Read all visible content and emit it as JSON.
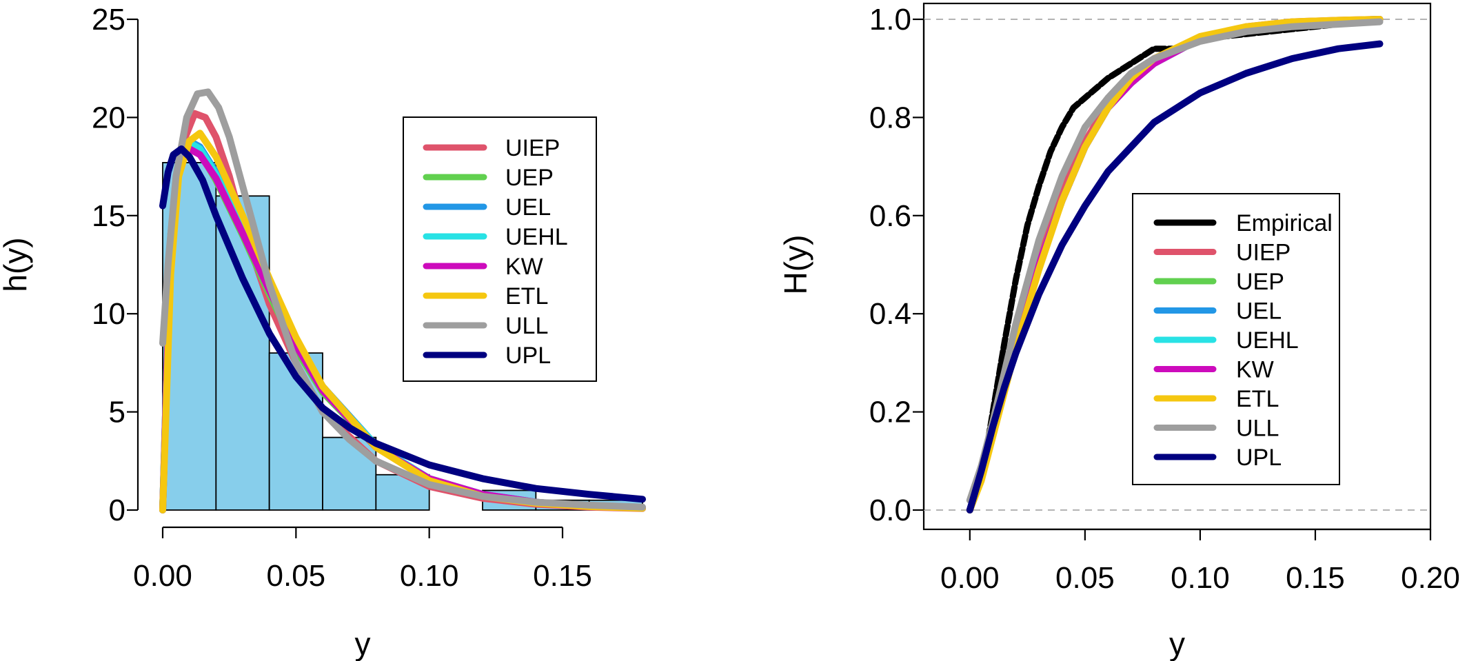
{
  "chart_data": [
    {
      "type": "histogram",
      "xlabel": "y",
      "ylabel": "h(y)",
      "xlim": [
        0,
        0.18
      ],
      "ylim": [
        0,
        25
      ],
      "x_ticks": [
        "0.00",
        "0.05",
        "0.10",
        "0.15"
      ],
      "x_tick_values": [
        0,
        0.05,
        0.1,
        0.15
      ],
      "y_ticks": [
        "0",
        "5",
        "10",
        "15",
        "20",
        "25"
      ],
      "y_tick_values": [
        0,
        5,
        10,
        15,
        20,
        25
      ],
      "histogram": {
        "bin_edges": [
          0,
          0.02,
          0.04,
          0.06,
          0.08,
          0.1,
          0.12,
          0.14,
          0.16,
          0.18
        ],
        "heights": [
          17.7,
          16.0,
          8.0,
          3.7,
          1.8,
          0.0,
          1.0,
          0.5,
          0.5
        ],
        "fill": "#87CEEB"
      },
      "legend_position": "top-right",
      "series": [
        {
          "name": "UIEP",
          "color": "#DF536B",
          "x": [
            0,
            0.003,
            0.007,
            0.012,
            0.016,
            0.02,
            0.025,
            0.03,
            0.04,
            0.05,
            0.06,
            0.08,
            0.1,
            0.12,
            0.14,
            0.16,
            0.18
          ],
          "y": [
            0,
            13,
            18.5,
            20.2,
            20.0,
            19.0,
            17.0,
            14.5,
            10.5,
            7.5,
            5.0,
            2.5,
            1.2,
            0.6,
            0.3,
            0.15,
            0.08
          ]
        },
        {
          "name": "UEP",
          "color": "#61D04F",
          "x": [
            0,
            0.003,
            0.006,
            0.01,
            0.014,
            0.02,
            0.03,
            0.04,
            0.05,
            0.06,
            0.08,
            0.1,
            0.12,
            0.14,
            0.16,
            0.18
          ],
          "y": [
            0,
            14,
            17.5,
            18.5,
            18.2,
            16.8,
            14.0,
            11.0,
            8.2,
            6.0,
            3.2,
            1.6,
            0.8,
            0.4,
            0.2,
            0.1
          ]
        },
        {
          "name": "UEL",
          "color": "#2297E6",
          "x": [
            0,
            0.003,
            0.006,
            0.01,
            0.014,
            0.02,
            0.03,
            0.04,
            0.05,
            0.06,
            0.08,
            0.1,
            0.12,
            0.14,
            0.16,
            0.18
          ],
          "y": [
            0,
            14,
            17.8,
            18.8,
            18.5,
            17.2,
            14.4,
            11.5,
            8.6,
            6.3,
            3.3,
            1.6,
            0.8,
            0.4,
            0.2,
            0.1
          ]
        },
        {
          "name": "UEHL",
          "color": "#28E2E5",
          "x": [
            0,
            0.003,
            0.006,
            0.01,
            0.014,
            0.02,
            0.03,
            0.04,
            0.05,
            0.06,
            0.08,
            0.1,
            0.12,
            0.14,
            0.16,
            0.18
          ],
          "y": [
            0,
            14,
            17.7,
            18.7,
            18.4,
            17.1,
            14.3,
            11.4,
            8.5,
            6.2,
            3.3,
            1.6,
            0.8,
            0.4,
            0.2,
            0.1
          ]
        },
        {
          "name": "KW",
          "color": "#CD0BBC",
          "x": [
            0,
            0.003,
            0.006,
            0.01,
            0.014,
            0.02,
            0.03,
            0.04,
            0.05,
            0.06,
            0.08,
            0.1,
            0.12,
            0.14,
            0.16,
            0.18
          ],
          "y": [
            0,
            13.5,
            17.4,
            18.4,
            18.1,
            16.9,
            14.1,
            11.2,
            8.4,
            6.1,
            3.2,
            1.6,
            0.8,
            0.4,
            0.2,
            0.1
          ]
        },
        {
          "name": "ETL",
          "color": "#F5C710",
          "x": [
            0,
            0.003,
            0.006,
            0.01,
            0.014,
            0.02,
            0.03,
            0.04,
            0.05,
            0.06,
            0.08,
            0.1,
            0.12,
            0.14,
            0.16,
            0.18
          ],
          "y": [
            0,
            12,
            17.0,
            18.8,
            19.2,
            18.0,
            15.0,
            11.8,
            8.8,
            6.3,
            3.2,
            1.5,
            0.7,
            0.35,
            0.18,
            0.09
          ]
        },
        {
          "name": "ULL",
          "color": "#9E9E9E",
          "x": [
            0,
            0.002,
            0.005,
            0.009,
            0.013,
            0.017,
            0.021,
            0.025,
            0.03,
            0.04,
            0.05,
            0.06,
            0.07,
            0.08,
            0.1,
            0.12,
            0.14,
            0.16,
            0.18
          ],
          "y": [
            8.5,
            12.5,
            17.0,
            20.0,
            21.2,
            21.3,
            20.5,
            19.0,
            16.5,
            11.5,
            7.5,
            5.0,
            3.6,
            2.5,
            1.3,
            0.7,
            0.4,
            0.25,
            0.15
          ]
        },
        {
          "name": "UPL",
          "color": "#000080",
          "x": [
            0,
            0.002,
            0.004,
            0.007,
            0.01,
            0.015,
            0.02,
            0.03,
            0.04,
            0.05,
            0.06,
            0.07,
            0.08,
            0.1,
            0.12,
            0.14,
            0.16,
            0.18
          ],
          "y": [
            15.5,
            17.2,
            18.1,
            18.4,
            18.0,
            16.8,
            15.0,
            11.8,
            9.0,
            6.8,
            5.2,
            4.2,
            3.4,
            2.3,
            1.6,
            1.1,
            0.8,
            0.55
          ]
        }
      ]
    },
    {
      "type": "line",
      "xlabel": "y",
      "ylabel": "H(y)",
      "xlim": [
        -0.02,
        0.2
      ],
      "ylim": [
        0,
        1.0
      ],
      "x_ticks": [
        "0.00",
        "0.05",
        "0.10",
        "0.15",
        "0.20"
      ],
      "x_tick_values": [
        0,
        0.05,
        0.1,
        0.15,
        0.2
      ],
      "y_ticks": [
        "0.0",
        "0.2",
        "0.4",
        "0.6",
        "0.8",
        "1.0"
      ],
      "y_tick_values": [
        0,
        0.2,
        0.4,
        0.6,
        0.8,
        1.0
      ],
      "reference_lines": [
        0,
        1
      ],
      "legend_position": "center-right",
      "series": [
        {
          "name": "Empirical",
          "color": "#000000",
          "x": [
            0,
            0.005,
            0.01,
            0.015,
            0.02,
            0.025,
            0.03,
            0.035,
            0.04,
            0.045,
            0.05,
            0.055,
            0.06,
            0.07,
            0.08,
            0.09,
            0.1,
            0.12,
            0.14,
            0.16,
            0.178
          ],
          "y": [
            0.02,
            0.06,
            0.2,
            0.34,
            0.47,
            0.58,
            0.66,
            0.73,
            0.78,
            0.82,
            0.84,
            0.86,
            0.88,
            0.91,
            0.94,
            0.94,
            0.96,
            0.97,
            0.98,
            0.99,
            1.0
          ]
        },
        {
          "name": "UIEP",
          "color": "#DF536B",
          "x": [
            0,
            0.005,
            0.01,
            0.015,
            0.02,
            0.03,
            0.04,
            0.05,
            0.06,
            0.07,
            0.08,
            0.1,
            0.12,
            0.14,
            0.16,
            0.178
          ],
          "y": [
            0,
            0.07,
            0.16,
            0.26,
            0.35,
            0.52,
            0.65,
            0.75,
            0.83,
            0.88,
            0.92,
            0.96,
            0.985,
            0.995,
            0.998,
            1.0
          ]
        },
        {
          "name": "UEP",
          "color": "#61D04F",
          "x": [
            0,
            0.005,
            0.01,
            0.015,
            0.02,
            0.03,
            0.04,
            0.05,
            0.06,
            0.07,
            0.08,
            0.1,
            0.12,
            0.14,
            0.16,
            0.178
          ],
          "y": [
            0,
            0.07,
            0.16,
            0.25,
            0.34,
            0.5,
            0.63,
            0.74,
            0.82,
            0.87,
            0.91,
            0.96,
            0.98,
            0.99,
            0.997,
            1.0
          ]
        },
        {
          "name": "UEL",
          "color": "#2297E6",
          "x": [
            0,
            0.005,
            0.01,
            0.015,
            0.02,
            0.03,
            0.04,
            0.05,
            0.06,
            0.07,
            0.08,
            0.1,
            0.12,
            0.14,
            0.16,
            0.178
          ],
          "y": [
            0,
            0.07,
            0.16,
            0.25,
            0.34,
            0.5,
            0.63,
            0.74,
            0.82,
            0.87,
            0.91,
            0.96,
            0.98,
            0.99,
            0.997,
            1.0
          ]
        },
        {
          "name": "UEHL",
          "color": "#28E2E5",
          "x": [
            0,
            0.005,
            0.01,
            0.015,
            0.02,
            0.03,
            0.04,
            0.05,
            0.06,
            0.07,
            0.08,
            0.1,
            0.12,
            0.14,
            0.16,
            0.178
          ],
          "y": [
            0,
            0.07,
            0.16,
            0.25,
            0.34,
            0.5,
            0.63,
            0.74,
            0.82,
            0.87,
            0.91,
            0.96,
            0.98,
            0.99,
            0.997,
            1.0
          ]
        },
        {
          "name": "KW",
          "color": "#CD0BBC",
          "x": [
            0,
            0.005,
            0.01,
            0.015,
            0.02,
            0.03,
            0.04,
            0.05,
            0.06,
            0.07,
            0.08,
            0.1,
            0.12,
            0.14,
            0.16,
            0.178
          ],
          "y": [
            0,
            0.07,
            0.16,
            0.25,
            0.34,
            0.5,
            0.63,
            0.74,
            0.82,
            0.87,
            0.91,
            0.96,
            0.98,
            0.99,
            0.997,
            1.0
          ]
        },
        {
          "name": "ETL",
          "color": "#F5C710",
          "x": [
            0,
            0.005,
            0.01,
            0.015,
            0.02,
            0.03,
            0.04,
            0.05,
            0.06,
            0.07,
            0.08,
            0.1,
            0.12,
            0.14,
            0.16,
            0.178
          ],
          "y": [
            0,
            0.06,
            0.15,
            0.24,
            0.33,
            0.49,
            0.63,
            0.74,
            0.82,
            0.88,
            0.92,
            0.965,
            0.985,
            0.995,
            0.998,
            1.0
          ]
        },
        {
          "name": "ULL",
          "color": "#9E9E9E",
          "x": [
            0,
            0.005,
            0.01,
            0.015,
            0.02,
            0.03,
            0.04,
            0.05,
            0.06,
            0.07,
            0.08,
            0.1,
            0.12,
            0.14,
            0.16,
            0.178
          ],
          "y": [
            0.02,
            0.09,
            0.18,
            0.28,
            0.38,
            0.55,
            0.68,
            0.78,
            0.84,
            0.89,
            0.92,
            0.955,
            0.975,
            0.985,
            0.99,
            0.995
          ]
        },
        {
          "name": "UPL",
          "color": "#000080",
          "x": [
            0,
            0.005,
            0.01,
            0.015,
            0.02,
            0.03,
            0.04,
            0.05,
            0.06,
            0.07,
            0.08,
            0.09,
            0.1,
            0.12,
            0.14,
            0.16,
            0.178
          ],
          "y": [
            0,
            0.08,
            0.17,
            0.25,
            0.32,
            0.44,
            0.54,
            0.62,
            0.69,
            0.74,
            0.79,
            0.82,
            0.85,
            0.89,
            0.92,
            0.94,
            0.95
          ]
        }
      ]
    }
  ]
}
